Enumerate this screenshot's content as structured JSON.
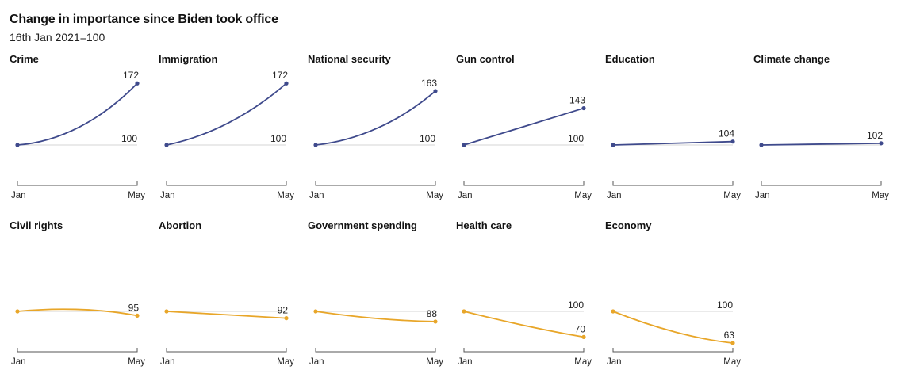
{
  "header": {
    "title": "Change in importance since Biden took office",
    "subtitle": "16th Jan 2021=100"
  },
  "colors": {
    "up": "#3f4a8c",
    "down": "#e8a629",
    "baseline": "#d4d4d4",
    "axis": "#555555"
  },
  "chart_data": {
    "type": "line",
    "title": "Change in importance since Biden took office",
    "subtitle": "16th Jan 2021=100",
    "x_start_label": "Jan",
    "x_end_label": "May",
    "baseline": 100,
    "ylim": [
      55,
      180
    ],
    "panels": [
      {
        "name": "Crime",
        "group": "up",
        "end": 172,
        "end_label": "172",
        "baseline_label": "100",
        "curve": 1.0
      },
      {
        "name": "Immigration",
        "group": "up",
        "end": 172,
        "end_label": "172",
        "baseline_label": "100",
        "curve": 0.7
      },
      {
        "name": "National security",
        "group": "up",
        "end": 163,
        "end_label": "163",
        "baseline_label": "100",
        "curve": 0.9
      },
      {
        "name": "Gun control",
        "group": "up",
        "end": 143,
        "end_label": "143",
        "baseline_label": "100",
        "curve": 0.0
      },
      {
        "name": "Education",
        "group": "up",
        "end": 104,
        "end_label": "104",
        "baseline_label": "",
        "curve": 0.0
      },
      {
        "name": "Climate change",
        "group": "up",
        "end": 102,
        "end_label": "102",
        "baseline_label": "",
        "curve": 0.0
      },
      {
        "name": "Civil rights",
        "group": "down",
        "end": 95,
        "end_label": "95",
        "baseline_label": "",
        "curve": 0.0,
        "mid": 104
      },
      {
        "name": "Abortion",
        "group": "down",
        "end": 92,
        "end_label": "92",
        "baseline_label": "",
        "curve": 0.0
      },
      {
        "name": "Government spending",
        "group": "down",
        "end": 88,
        "end_label": "88",
        "baseline_label": "",
        "curve": -0.8
      },
      {
        "name": "Health care",
        "group": "down",
        "end": 70,
        "end_label": "70",
        "baseline_label": "100",
        "curve": -0.2
      },
      {
        "name": "Economy",
        "group": "down",
        "end": 63,
        "end_label": "63",
        "baseline_label": "100",
        "curve": -0.6
      }
    ]
  }
}
